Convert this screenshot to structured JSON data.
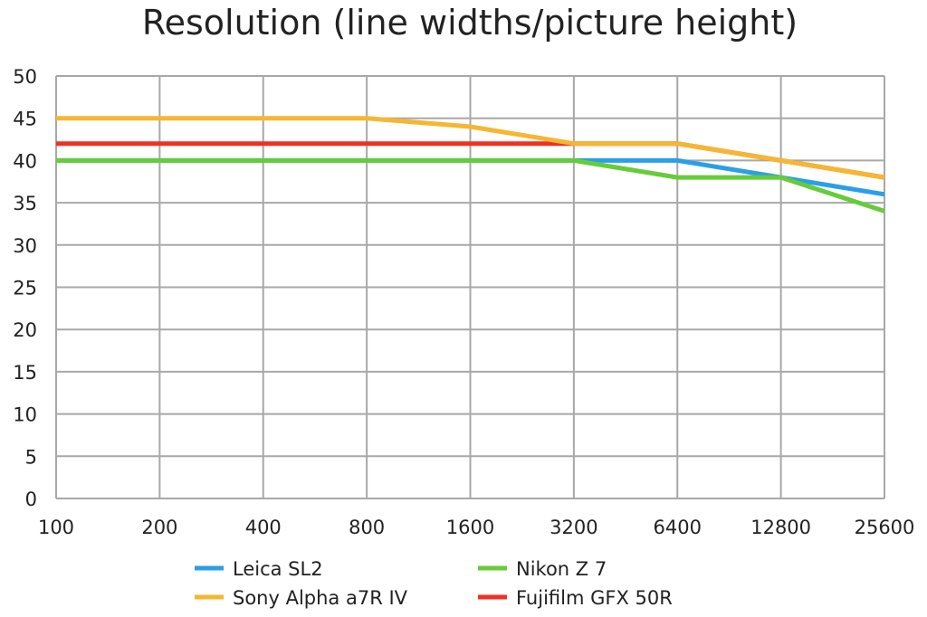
{
  "chart_data": {
    "type": "line",
    "title": "Resolution (line widths/picture height)",
    "xlabel": "",
    "ylabel": "",
    "categories": [
      "100",
      "200",
      "400",
      "800",
      "1600",
      "3200",
      "6400",
      "12800",
      "25600"
    ],
    "ylim": [
      0,
      50
    ],
    "yticks": [
      "0",
      "5",
      "10",
      "15",
      "20",
      "25",
      "30",
      "35",
      "40",
      "45",
      "50"
    ],
    "grid": true,
    "legend_position": "bottom",
    "series": [
      {
        "name": "Leica SL2",
        "color": "#2a9fe8",
        "values": [
          40,
          40,
          40,
          40,
          40,
          40,
          40,
          38,
          36
        ]
      },
      {
        "name": "Nikon Z 7",
        "color": "#66cc3a",
        "values": [
          40,
          40,
          40,
          40,
          40,
          40,
          38,
          38,
          34
        ]
      },
      {
        "name": "Fujifilm GFX 50R",
        "color": "#f03024",
        "values": [
          42,
          42,
          42,
          42,
          42,
          42,
          42,
          40,
          38
        ]
      },
      {
        "name": "Sony Alpha a7R IV",
        "color": "#f5b731",
        "values": [
          45,
          45,
          45,
          45,
          44,
          42,
          42,
          40,
          38
        ]
      }
    ],
    "legend": [
      {
        "series": "Leica SL2"
      },
      {
        "series": "Nikon Z 7"
      },
      {
        "series": "Sony Alpha a7R IV"
      },
      {
        "series": "Fujifilm GFX 50R"
      }
    ]
  }
}
